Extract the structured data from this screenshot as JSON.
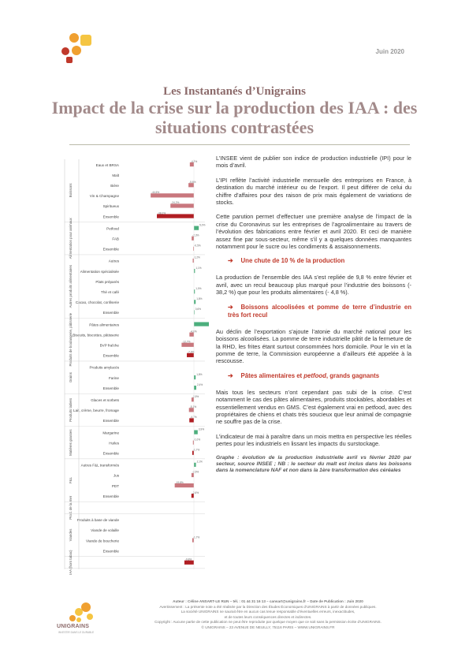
{
  "header": {
    "date": "Juin 2020",
    "kicker": "Les Instantanés d’Unigrains",
    "title": "Impact de la crise sur la production des IAA : des situations contrastées",
    "logo_colors": [
      "#f0a030",
      "#f5c542",
      "#c0392b",
      "#f0a030"
    ]
  },
  "chart_data": {
    "type": "bar",
    "orientation": "horizontal",
    "colors": {
      "positive": "#4caf7d",
      "negative": "#c9777d",
      "total": "#b01e23"
    },
    "groups": [
      {
        "name": "Boissons",
        "rows": [
          {
            "label": "Eaux et BRSA",
            "value": -4.2,
            "text": "-4,2%"
          },
          {
            "label": "Malt",
            "value": 0,
            "text": ""
          },
          {
            "label": "Bière",
            "value": -5.6,
            "text": "-5,6%"
          },
          {
            "label": "Vin & Champagne",
            "value": -44.6,
            "text": "-44,6%"
          },
          {
            "label": "Spiritueux",
            "value": -24.2,
            "text": "-24,2%"
          },
          {
            "label": "Ensemble",
            "value": -38.2,
            "text": "-38,2%",
            "total": true
          }
        ]
      },
      {
        "name": "Alimentation pour animaux",
        "rows": [
          {
            "label": "Petfood",
            "value": 5.0,
            "text": "5,0%"
          },
          {
            "label": "FAB",
            "value": -2.3,
            "text": "-2,3%"
          },
          {
            "label": "Ensemble",
            "value": -0.5,
            "text": "-0,5%",
            "total": true
          }
        ]
      },
      {
        "name": "Autres produits alimentaires",
        "rows": [
          {
            "label": "Autres",
            "value": -1.2,
            "text": "-1,2%"
          },
          {
            "label": "Alimentation spécialisée",
            "value": 1.1,
            "text": "1,1%"
          },
          {
            "label": "Plats préparés",
            "value": 0,
            "text": ""
          },
          {
            "label": "Thé et café",
            "value": 1.0,
            "text": "1,0%"
          },
          {
            "label": "Cacao, chocolat, confiserie",
            "value": 1.8,
            "text": "1,8%"
          },
          {
            "label": "Ensemble",
            "value": 0.6,
            "text": "0,6%",
            "total": true
          }
        ]
      },
      {
        "name": "Produits de boulangerie, pâtisserie",
        "rows": [
          {
            "label": "Pâtes alimentaires",
            "value": 25.0,
            "text": "25,0%"
          },
          {
            "label": "Biscuits, biscottes, pâtisserie",
            "value": -4.6,
            "text": "-4,6%"
          },
          {
            "label": "BVP fraîche",
            "value": -12.7,
            "text": "-12,7%"
          },
          {
            "label": "Ensemble",
            "value": -7.3,
            "text": "-7,3%",
            "total": true
          }
        ]
      },
      {
        "name": "Grains",
        "rows": [
          {
            "label": "Produits amylacés",
            "value": 0,
            "text": ""
          },
          {
            "label": "Farine",
            "value": 1.8,
            "text": "1,8%"
          },
          {
            "label": "Ensemble",
            "value": 2.4,
            "text": "2,4%",
            "total": true
          }
        ]
      },
      {
        "name": "Produits laitiers",
        "rows": [
          {
            "label": "Glaces et sorbets",
            "value": -2.5,
            "text": "-2,5%"
          },
          {
            "label": "Lait, crème, beurre, fromage",
            "value": -5.1,
            "text": "-5,1%"
          },
          {
            "label": "Ensemble",
            "value": -4.7,
            "text": "-4,7%",
            "total": true
          }
        ]
      },
      {
        "name": "Matières grasses",
        "rows": [
          {
            "label": "Margarine",
            "value": 3.9,
            "text": "3,9%"
          },
          {
            "label": "Huiles",
            "value": -1.0,
            "text": "-1,0%"
          },
          {
            "label": "Ensemble",
            "value": -1.7,
            "text": "-1,7%",
            "total": true
          }
        ]
      },
      {
        "name": "F&L",
        "rows": [
          {
            "label": "Autres F&L transformés",
            "value": 2.1,
            "text": "2,1%"
          },
          {
            "label": "Jus",
            "value": -2.5,
            "text": "-2,5%"
          },
          {
            "label": "PDT",
            "value": -19.8,
            "text": "-19,8%"
          },
          {
            "label": "Ensemble",
            "value": -2.6,
            "text": "-2,6%",
            "total": true
          }
        ]
      },
      {
        "name": "Prod. de la mer",
        "rows": [
          {
            "label": "",
            "value": 0,
            "text": ""
          }
        ]
      },
      {
        "name": "Viandes",
        "rows": [
          {
            "label": "Produits à base de viande",
            "value": 0,
            "text": ""
          },
          {
            "label": "Viande de volaille",
            "value": 0,
            "text": ""
          },
          {
            "label": "Viande de boucherie",
            "value": -1.7,
            "text": "-1,7%"
          },
          {
            "label": "Ensemble",
            "value": 0,
            "text": "",
            "total": true
          }
        ]
      },
      {
        "name": "IAA (hors tabac)",
        "rows": [
          {
            "label": "",
            "value": -9.8,
            "text": "-9,8%",
            "total": true
          }
        ]
      }
    ]
  },
  "body": {
    "p1": "L’INSEE vient de publier son indice de production industrielle (IPI) pour le mois d’avril.",
    "p2": "L’IPI reflète l’activité industrielle mensuelle des entreprises en France, à destination du marché intérieur ou de l’export. Il peut différer de celui du chiffre d’affaires pour des raison de prix mais également de variations de stocks.",
    "p3": "Cette parution permet d’effectuer une première analyse de l’impact de la crise du Coronavirus sur les entreprises de l’agroalimentaire au travers de l’évolution des fabrications entre février et avril 2020. Et ceci de manière assez fine par sous-secteur, même s’il y a quelques données manquantes notamment pour le sucre ou les condiments & assaisonnements.",
    "h1": "Une chute de 10 % de la production",
    "p4": "La production de l’ensemble des IAA s’est repliée de 9,8 % entre février et avril, avec un recul beaucoup plus marqué pour l’industrie des boissons (- 38,2 %) que pour les produits alimentaires (- 4,8 %).",
    "h2": "Boissons alcoolisées et pomme de terre d’industrie en très fort recul",
    "p5": "Au déclin de l’exportation s’ajoute l’atonie du marché national pour les boissons alcoolisées. La pomme de terre industrielle pâtit de la fermeture de la RHD, les frites étant surtout consommées hors domicile. Pour le vin et la pomme de terre, la Commission européenne a d’ailleurs été appelée à la rescousse.",
    "h3_a": "Pâtes alimentaires et ",
    "h3_b": "petfood",
    "h3_c": ", grands gagnants",
    "p6": "Mais tous les secteurs n’ont cependant pas subi de la crise. C’est notamment le cas des pâtes alimentaires, produits stockables, abordables et essentiellement vendus en GMS. C’est également vrai en petfood, avec des propriétaires de chiens et chats très soucieux que leur animal de compagnie ne souffre pas de la crise.",
    "p7": "L’indicateur de mai à paraître dans un mois mettra en perspective les réelles pertes pour les industriels en lissant les impacts du surstockage.",
    "caption": "Graphe : évolution de la production industrielle avril vs février 2020 par secteur, source INSEE ; NB : le secteur du malt est inclus dans les boissons dans la nomenclature NAF et non dans la 1ère transformation des céréales",
    "arrow": "➔"
  },
  "footer": {
    "author": "Auteur : Céline ANSART-LE RUN – tél. : 01 44 31 16 13 – cansart@unigrains.fr – Date de Publication : Juin 2020",
    "warning": "Avertissement : La présente note a été réalisée par la Direction des Études Économiques d’UNIGRAINS à partir de données publiques.",
    "warning2": "La société UNIGRAINS ne saurait être en aucun cas tenue responsable d’éventuelles erreurs, inexactitudes,",
    "warning3": "et de toutes leurs conséquences directes et indirectes.",
    "copyright": "Copyright : Aucune partie de cette publication ne peut être reproduite par quelque moyen que ce soit sans la permission écrite d’UNIGRAINS.",
    "address": "© UNIGRAINS – 23 AVENUE DE NEUILLY, 75116 PARIS – WWW.UNIGRAINS.FR",
    "brand": "UNIGRAINS",
    "brand_sub": "INVESTIR DANS LE DURABLE"
  }
}
